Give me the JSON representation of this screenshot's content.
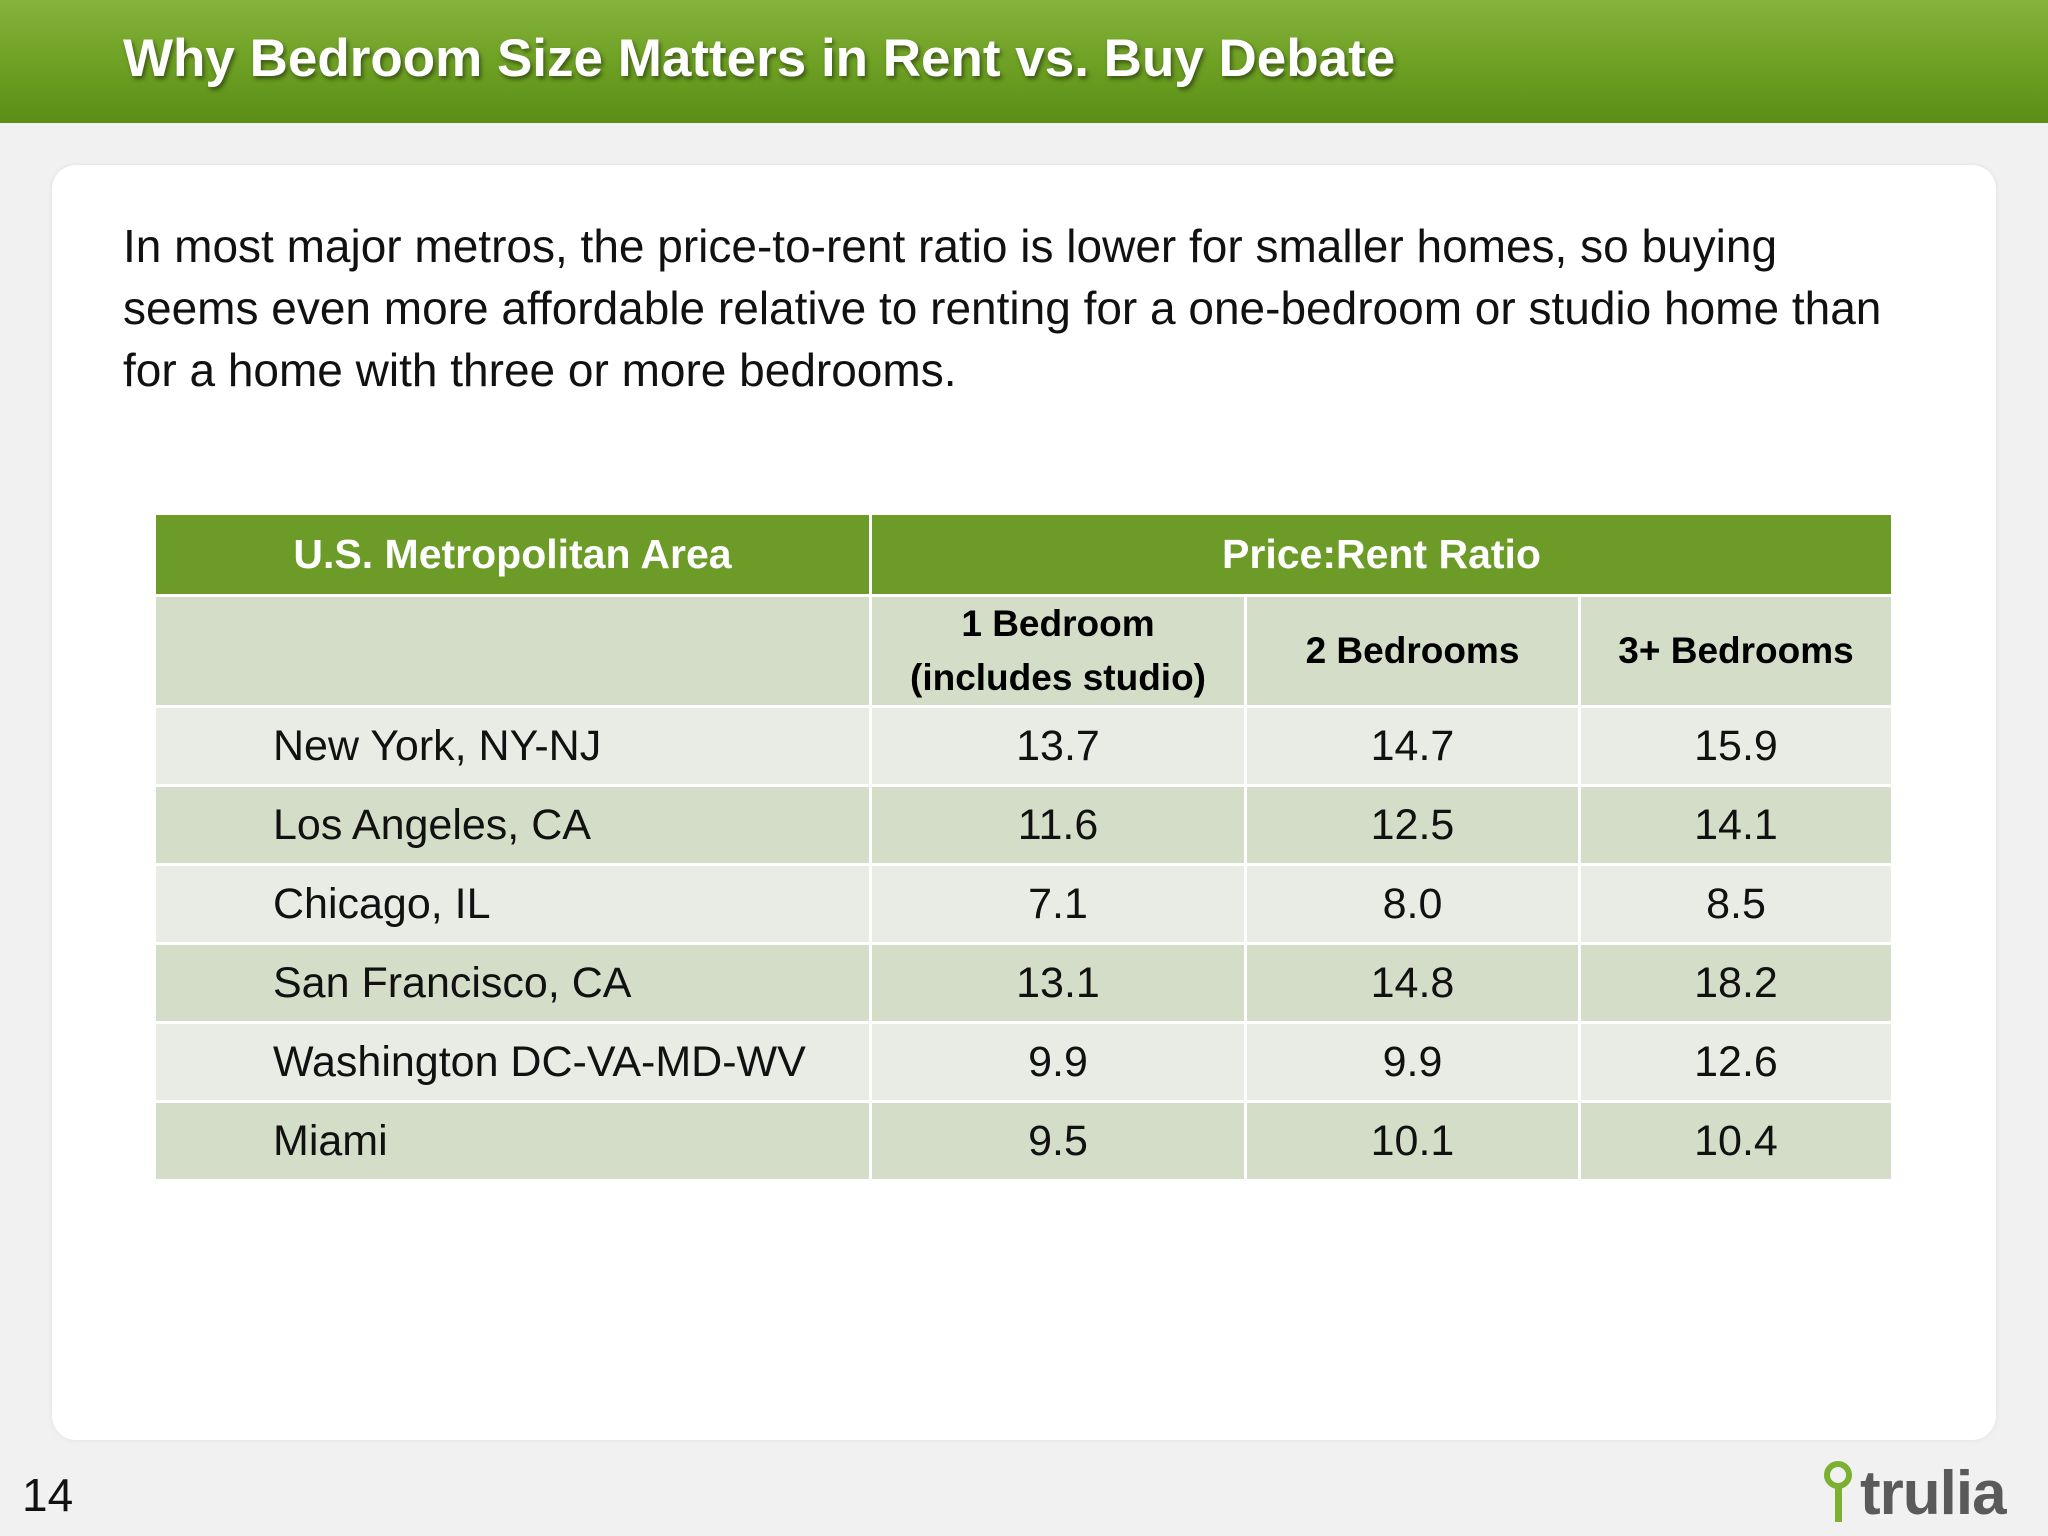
{
  "slide": {
    "title": "Why Bedroom Size Matters in Rent vs. Buy Debate",
    "intro": "In most major metros, the price-to-rent ratio is lower for smaller homes, so buying seems even more affordable relative to renting for a one-bedroom or studio home than for a home with three or more bedrooms.",
    "page_number": "14",
    "logo_text": "trulia"
  },
  "table": {
    "header_metro": "U.S. Metropolitan Area",
    "header_ratio": "Price:Rent Ratio",
    "sub_headers": {
      "one_bed_line1": "1 Bedroom",
      "one_bed_line2": "(includes studio)",
      "two_bed": "2 Bedrooms",
      "three_bed": "3+ Bedrooms"
    },
    "rows": [
      {
        "metro": "New York, NY-NJ",
        "one": "13.7",
        "two": "14.7",
        "three": "15.9"
      },
      {
        "metro": "Los Angeles, CA",
        "one": "11.6",
        "two": "12.5",
        "three": "14.1"
      },
      {
        "metro": "Chicago, IL",
        "one": "7.1",
        "two": "8.0",
        "three": "8.5"
      },
      {
        "metro": "San Francisco, CA",
        "one": "13.1",
        "two": "14.8",
        "three": "18.2"
      },
      {
        "metro": "Washington DC-VA-MD-WV",
        "one": "9.9",
        "two": "9.9",
        "three": "12.6"
      },
      {
        "metro": "Miami",
        "one": "9.5",
        "two": "10.1",
        "three": "10.4"
      }
    ]
  },
  "colors": {
    "title_green": "#6c9f22",
    "header_green": "#6c9b28",
    "row_light": "#e8ece4",
    "row_dark": "#d4ddc8",
    "logo_green": "#7bb030"
  }
}
